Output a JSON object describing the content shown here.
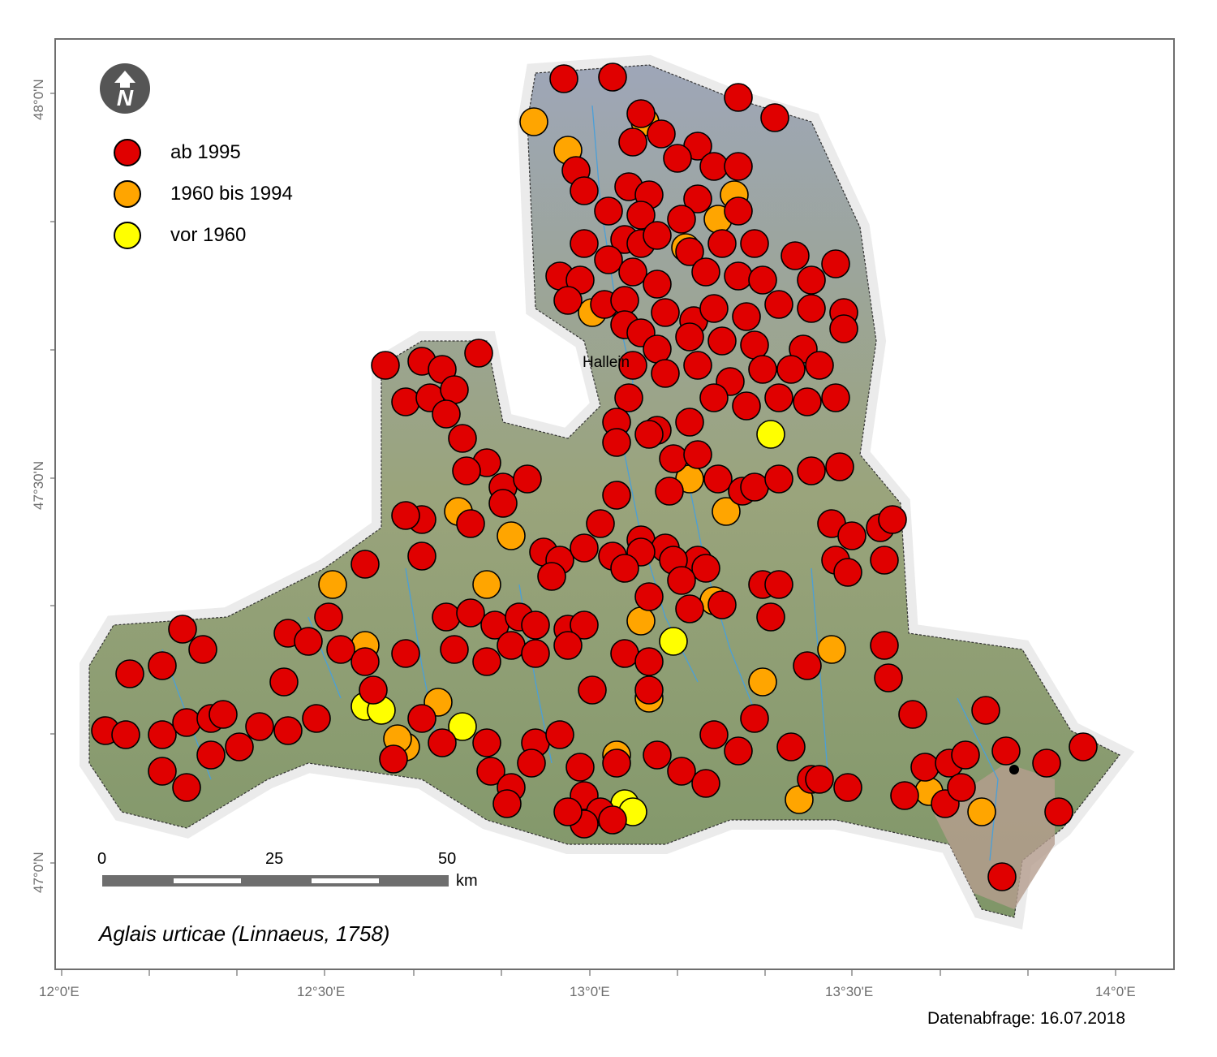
{
  "map": {
    "lat_ticks": [
      "48°0'N",
      "47°30'N",
      "47°0'N"
    ],
    "lon_ticks": [
      "12°0'E",
      "12°30'E",
      "13°0'E",
      "13°30'E",
      "14°0'E"
    ],
    "place_label": "Hallein",
    "north_arrow_letter": "N",
    "colors": {
      "frame": "#6e6e6e",
      "recent": "#e00000",
      "mid": "#ffa500",
      "old": "#ffff00",
      "terrain_green": "#8fa070",
      "terrain_gray": "#a3a9bb"
    }
  },
  "legend": {
    "items": [
      {
        "label": "ab 1995",
        "color": "#e00000"
      },
      {
        "label": "1960 bis 1994",
        "color": "#ffa500"
      },
      {
        "label": "vor 1960",
        "color": "#ffff00"
      }
    ]
  },
  "scale_bar": {
    "ticks": [
      "0",
      "25",
      "50"
    ],
    "unit": "km"
  },
  "species": "Aglais urticae (Linnaeus, 1758)",
  "query_date": "Datenabfrage: 16.07.2018"
}
